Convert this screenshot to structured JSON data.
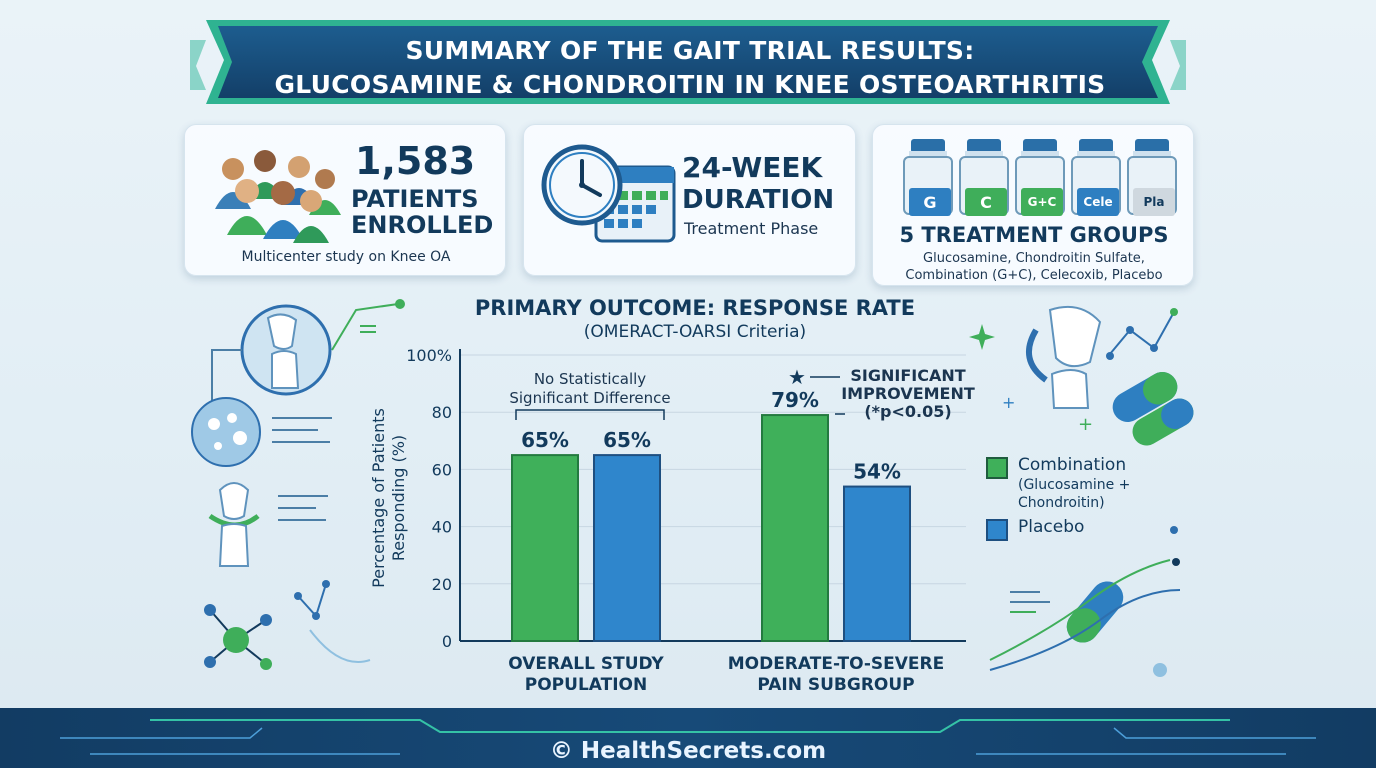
{
  "banner": {
    "line1": "SUMMARY OF THE GAIT TRIAL RESULTS:",
    "line2": "GLUCOSAMINE & CHONDROITIN IN KNEE OSTEOARTHRITIS"
  },
  "cards": {
    "patients": {
      "number": "1,583",
      "line1": "PATIENTS",
      "line2": "ENROLLED",
      "sub": "Multicenter study on Knee OA"
    },
    "duration": {
      "line1": "24-WEEK",
      "line2": "DURATION",
      "sub": "Treatment Phase"
    },
    "groups": {
      "heading": "5 TREATMENT GROUPS",
      "sub1": "Glucosamine, Chondroitin Sulfate,",
      "sub2": "Combination (G+C), Celecoxib, Placebo",
      "bottles": [
        {
          "label": "G",
          "color": "#2e7fc1"
        },
        {
          "label": "C",
          "color": "#3fae5a"
        },
        {
          "label": "G+C",
          "color": "#3fae5a"
        },
        {
          "label": "Cele",
          "color": "#2e7fc1"
        },
        {
          "label": "Pla",
          "color": "#cfd8df"
        }
      ]
    }
  },
  "chart_data": {
    "type": "bar",
    "title": "PRIMARY OUTCOME: RESPONSE RATE",
    "subtitle": "(OMERACT-OARSI Criteria)",
    "ylabel": "Percentage of Patients Responding (%)",
    "ylim": [
      0,
      100
    ],
    "yticks": [
      "0",
      "20",
      "40",
      "60",
      "80",
      "100%"
    ],
    "categories": [
      "OVERALL STUDY POPULATION",
      "MODERATE-TO-SEVERE PAIN SUBGROUP"
    ],
    "category_lines": [
      [
        "OVERALL STUDY",
        "POPULATION"
      ],
      [
        "MODERATE-TO-SEVERE",
        "PAIN SUBGROUP"
      ]
    ],
    "series": [
      {
        "name": "Combination",
        "values": [
          65,
          79
        ],
        "labels": [
          "65%",
          "79%"
        ],
        "color": "#3fb05a"
      },
      {
        "name": "Placebo",
        "values": [
          65,
          54
        ],
        "labels": [
          "65%",
          "54%"
        ],
        "color": "#2f86cc"
      }
    ],
    "annotations": {
      "left_line1": "No Statistically",
      "left_line2": "Significant Difference",
      "right_line1": "SIGNIFICANT",
      "right_line2": "IMPROVEMENT",
      "right_line3": "(*p<0.05)"
    },
    "legend": {
      "position": "right",
      "combination": "Combination",
      "combination_note1": "(Glucosamine +",
      "combination_note2": "Chondroitin)",
      "placebo": "Placebo"
    },
    "grid": true
  },
  "footer": {
    "text": "© HealthSecrets.com"
  }
}
